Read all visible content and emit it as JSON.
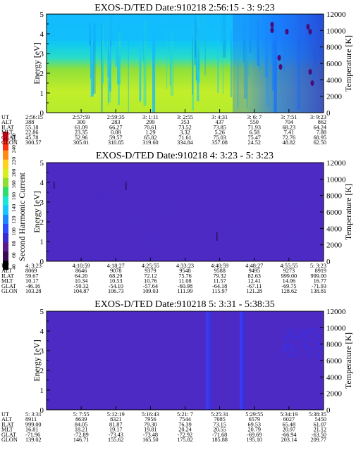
{
  "colorbar": {
    "label": "Second Harmonic Current",
    "ticks": [
      "40",
      "60",
      "80",
      "100",
      "120",
      "140",
      "160",
      "180",
      "200",
      "220",
      "240",
      "250"
    ],
    "colors": [
      "#000000",
      "#3b0a55",
      "#5a1a8c",
      "#3a2bd0",
      "#2a4dff",
      "#1c86ff",
      "#16c4ff",
      "#17e6d8",
      "#2adf6a",
      "#8fe02e",
      "#d7f01c",
      "#ffd21a",
      "#ff8a14",
      "#ff3010",
      "#e8001a"
    ]
  },
  "chart_data": [
    {
      "type": "heatmap",
      "title": "EXOS-D/TED   Date:910218  2:56:15 - 3: 9:23",
      "ylabel": "Energy [eV]",
      "y2label": "Temperature [K]",
      "ylim": [
        0,
        5
      ],
      "y2lim": [
        0,
        12000
      ],
      "yticks": [
        "0",
        "1",
        "2",
        "3",
        "4",
        "5"
      ],
      "y2ticks": [
        "0",
        "2000",
        "4000",
        "6000",
        "8000",
        "10000",
        "12000"
      ],
      "rows": [
        "UT",
        "ALT",
        "ILAT",
        "MLT",
        "GLAT",
        "GLON"
      ],
      "columns": [
        [
          "2:56:15",
          "388",
          "55.18",
          "22.86",
          "45.78",
          "300.57"
        ],
        [
          "2:57:59",
          "300",
          "61.09",
          "23.35",
          "52.96",
          "305.01"
        ],
        [
          "2:59:35",
          "283",
          "66.27",
          "0.08",
          "59.57",
          "310.85"
        ],
        [
          "3: 1:11",
          "299",
          "70.61",
          "1.29",
          "65.82",
          "319.60"
        ],
        [
          "3: 2:55",
          "353",
          "73.52",
          "3.32",
          "71.61",
          "334.84"
        ],
        [
          "3: 4:31",
          "437",
          "73.85",
          "5.26",
          "75.03",
          "357.08"
        ],
        [
          "3: 6: 7",
          "550",
          "71.93",
          "6.58",
          "75.47",
          "24.52"
        ],
        [
          "3: 7:51",
          "704",
          "68.23",
          "7.41",
          "72.76",
          "48.82"
        ],
        [
          "3: 9:23",
          "862",
          "64.24",
          "7.88",
          "68.95",
          "62.50"
        ]
      ]
    },
    {
      "type": "heatmap",
      "title": "EXOS-D/TED   Date:910218  4: 3:23 - 5: 3:23",
      "ylabel": "Energy [eV]",
      "y2label": "Temperature [K]",
      "ylim": [
        0,
        5
      ],
      "y2lim": [
        0,
        12000
      ],
      "yticks": [
        "0",
        "1",
        "2",
        "3",
        "4",
        "5"
      ],
      "y2ticks": [
        "0",
        "2000",
        "4000",
        "6000",
        "8000",
        "10000",
        "12000"
      ],
      "rows": [
        "UT",
        "ALT",
        "ILAT",
        "MLT",
        "GLAT",
        "GLON"
      ],
      "columns": [
        [
          "4: 3:23",
          "8069",
          "59.67",
          "10.17",
          "-46.16",
          "103.28"
        ],
        [
          "4:10:59",
          "8646",
          "64.20",
          "10.34",
          "-50.32",
          "104.87"
        ],
        [
          "4:18:27",
          "9078",
          "68.29",
          "10.53",
          "-54.10",
          "106.73"
        ],
        [
          "4:25:55",
          "9379",
          "72.12",
          "10.76",
          "-57.64",
          "109.03"
        ],
        [
          "4:33:23",
          "9548",
          "75.76",
          "11.08",
          "-60.98",
          "111.99"
        ],
        [
          "4:40:59",
          "9588",
          "79.32",
          "11.57",
          "-64.18",
          "115.97"
        ],
        [
          "4:48:27",
          "9495",
          "82.63",
          "12.41",
          "-67.11",
          "121.28"
        ],
        [
          "4:55:55",
          "9273",
          "999.00",
          "14.06",
          "-69.75",
          "128.62"
        ],
        [
          "5: 3:23",
          "8919",
          "999.00",
          "16.77",
          "-71.93",
          "138.81"
        ]
      ]
    },
    {
      "type": "heatmap",
      "title": "EXOS-D/TED   Date:910218  5: 3:31 - 5:38:35",
      "ylabel": "Energy [eV]",
      "y2label": "Temperature [K]",
      "ylim": [
        0,
        5
      ],
      "y2lim": [
        0,
        12000
      ],
      "yticks": [
        "0",
        "1",
        "2",
        "3",
        "4",
        "5"
      ],
      "y2ticks": [
        "0",
        "2000",
        "4000",
        "6000",
        "8000",
        "10000",
        "12000"
      ],
      "rows": [
        "UT",
        "ALT",
        "ILAT",
        "MLT",
        "GLAT",
        "GLON"
      ],
      "columns": [
        [
          "5: 3:31",
          "8911",
          "999.00",
          "16.81",
          "-71.96",
          "139.02"
        ],
        [
          "5: 7:55",
          "8639",
          "84.05",
          "18.21",
          "-72.89",
          "146.71"
        ],
        [
          "5:12:19",
          "8321",
          "81.87",
          "19.17",
          "-73.43",
          "155.62"
        ],
        [
          "5:16:43",
          "7956",
          "79.30",
          "19.81",
          "-73.48",
          "165.50"
        ],
        [
          "5:21: 7",
          "7544",
          "76.39",
          "20.24",
          "-72.92",
          "175.82"
        ],
        [
          "5:25:31",
          "7085",
          "73.15",
          "20.55",
          "-71.68",
          "185.88"
        ],
        [
          "5:29:55",
          "6579",
          "69.53",
          "20.79",
          "-69.69",
          "195.10"
        ],
        [
          "5:34:19",
          "6027",
          "65.48",
          "20.97",
          "-66.94",
          "203.14"
        ],
        [
          "5:38:35",
          "5450",
          "61.07",
          "21.12",
          "-63.50",
          "209.77"
        ]
      ]
    }
  ]
}
